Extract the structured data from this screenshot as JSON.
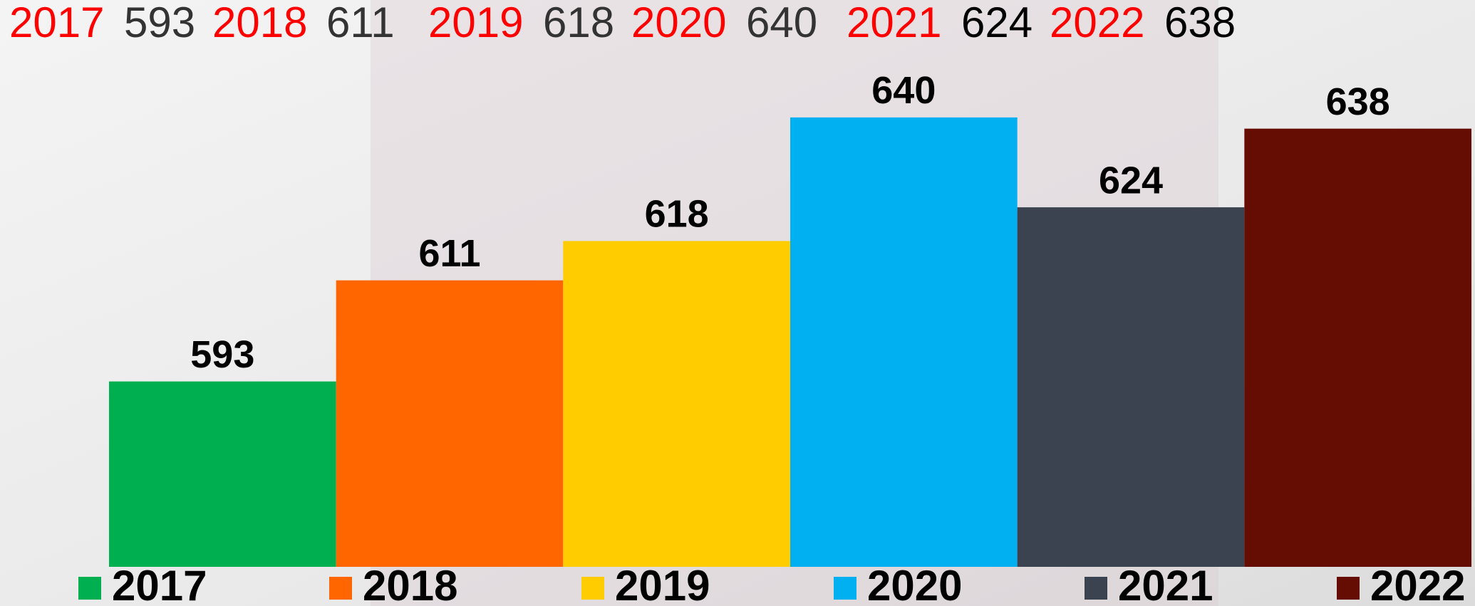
{
  "chart_data": {
    "type": "bar",
    "categories": [
      null
    ],
    "series": [
      {
        "name": "2017",
        "color": "#00b050",
        "values": [
          593
        ]
      },
      {
        "name": "2018",
        "color": "#ff6600",
        "values": [
          611
        ]
      },
      {
        "name": "2019",
        "color": "#ffcc00",
        "values": [
          618
        ]
      },
      {
        "name": "2020",
        "color": "#00b0f0",
        "values": [
          640
        ]
      },
      {
        "name": "2021",
        "color": "#3a434f",
        "values": [
          624
        ]
      },
      {
        "name": "2022",
        "color": "#650d02",
        "values": [
          638
        ]
      }
    ],
    "ylim": [
      560,
      650
    ],
    "legend": "bottom"
  }
}
